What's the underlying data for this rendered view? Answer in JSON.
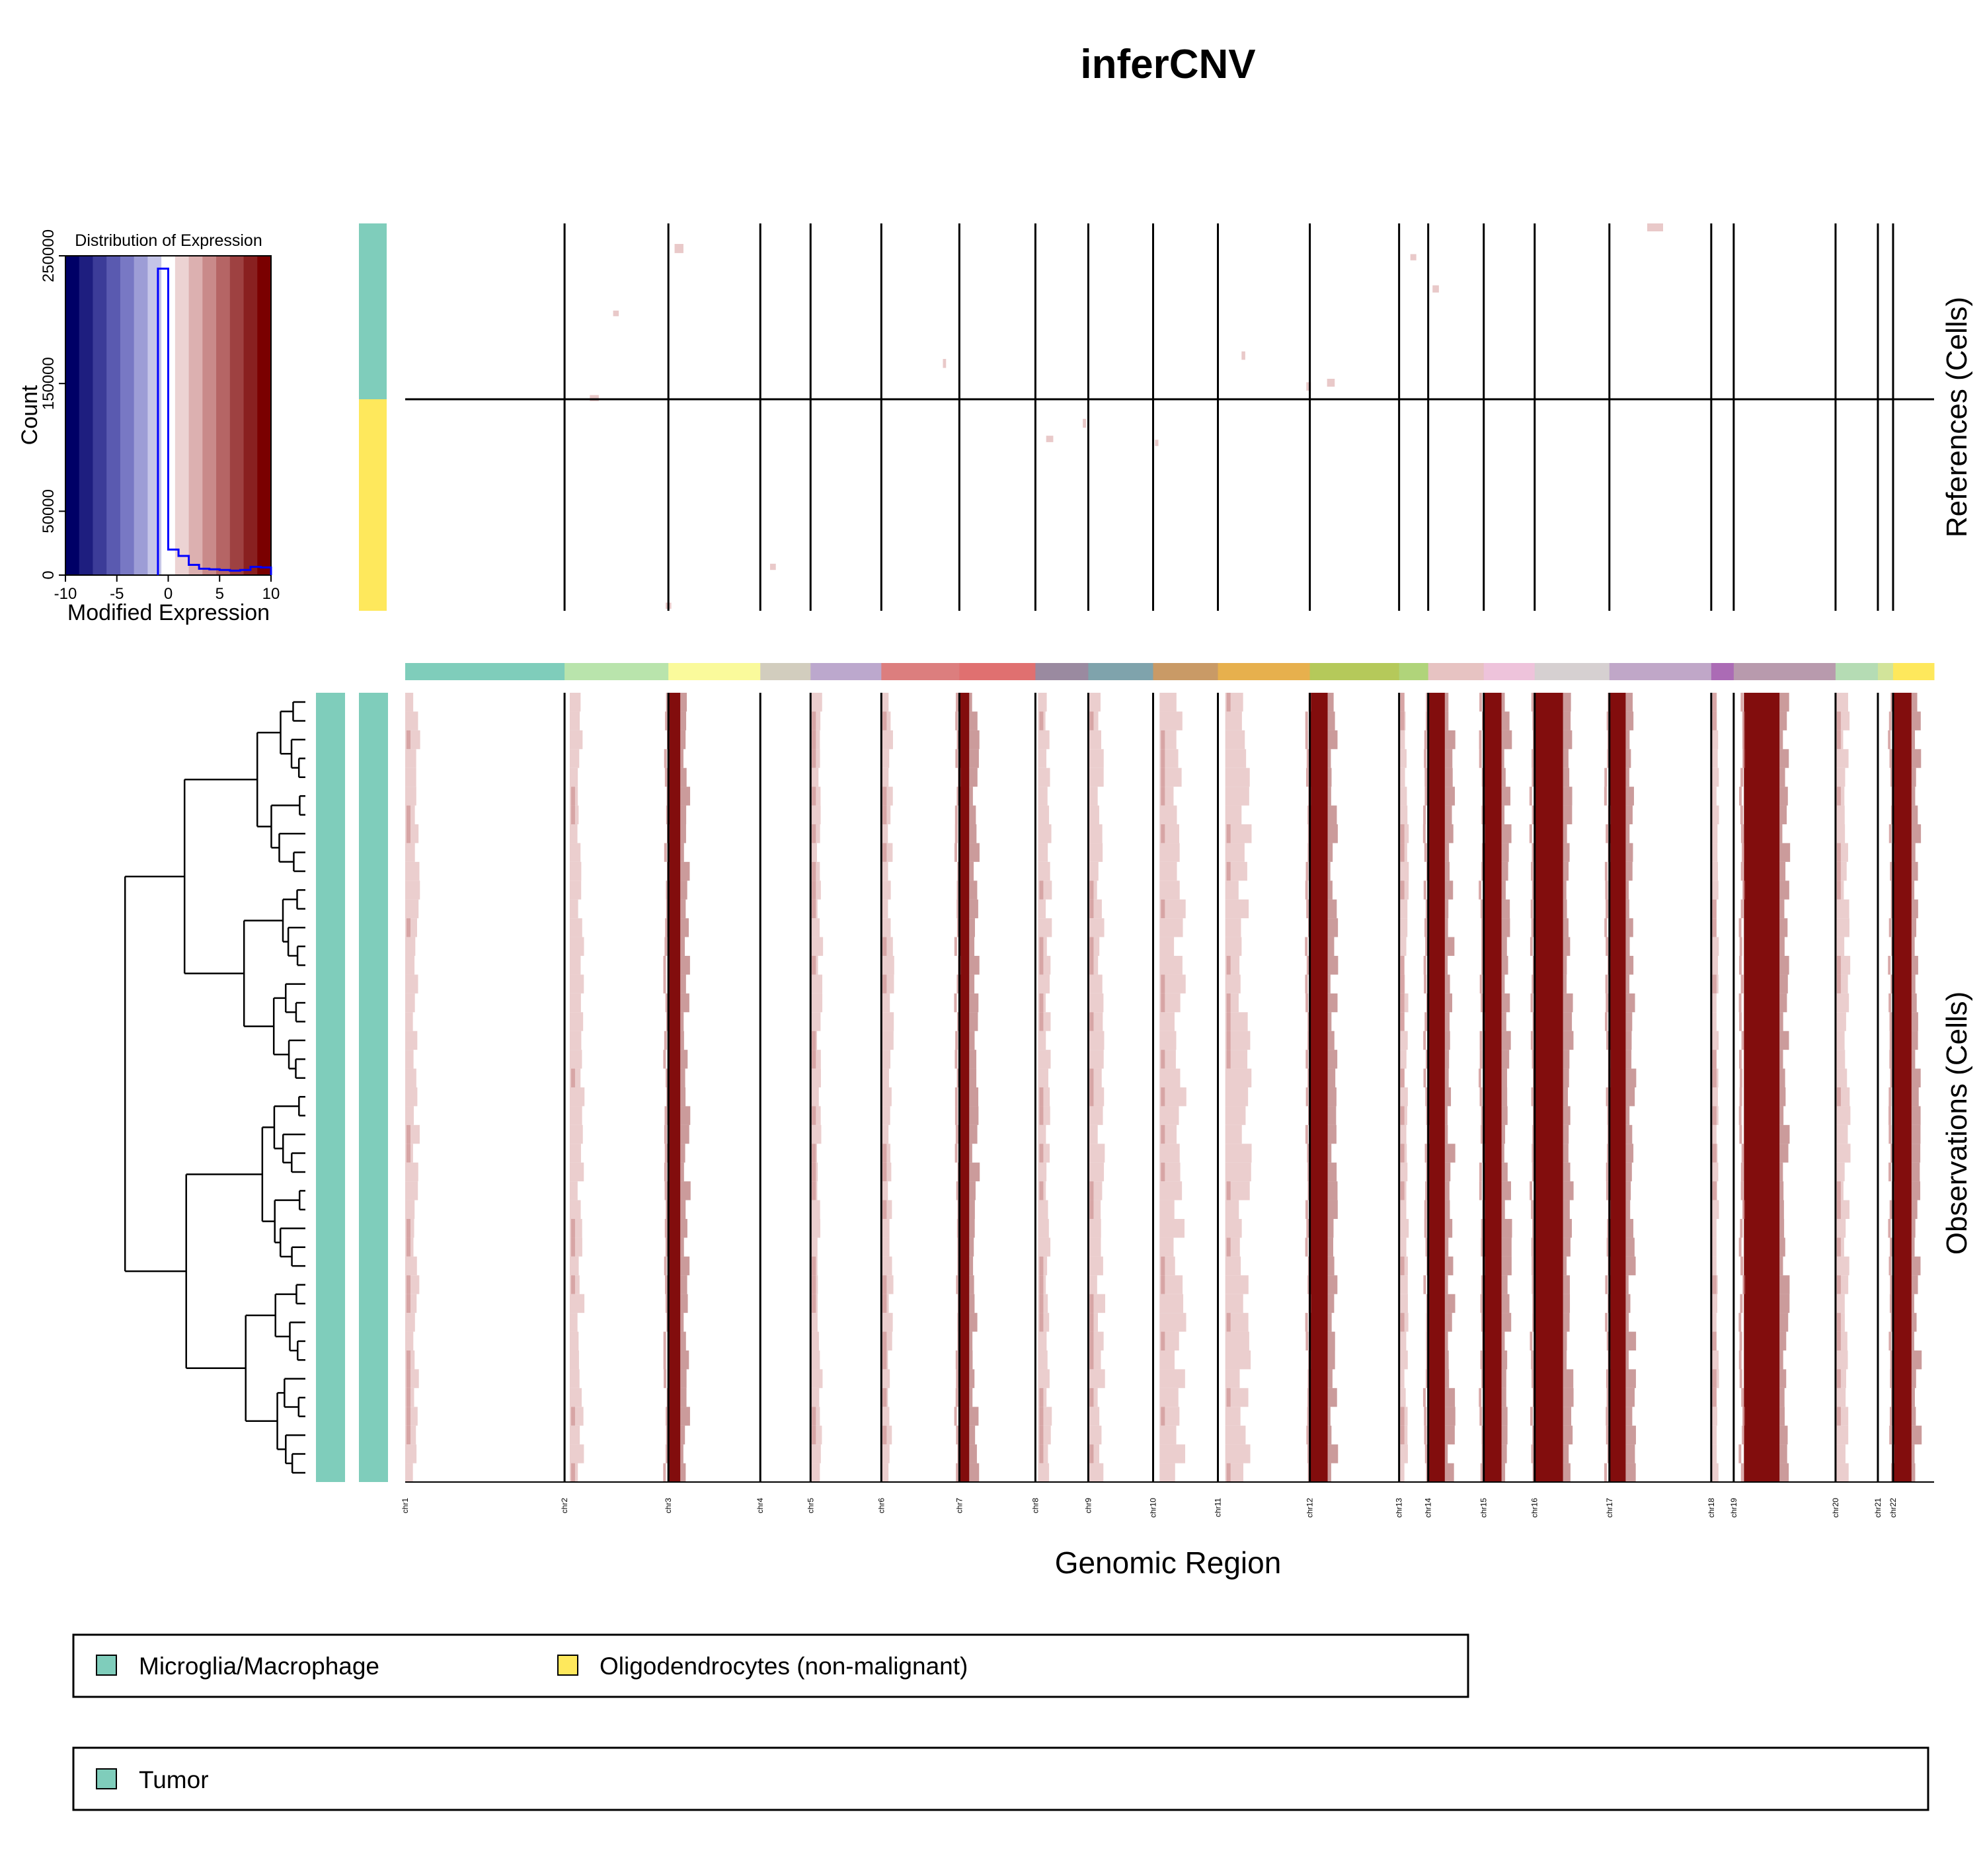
{
  "title": "inferCNV",
  "colors": {
    "microglia": "#7fcdbb",
    "oligodendrocytes": "#fee85c",
    "amplification": "#7b0000",
    "light_gain": "#e9c9c9",
    "line": "#000000",
    "hist_line": "#0000ff"
  },
  "histogram": {
    "title": "Distribution of Expression",
    "xlabel": "Modified Expression",
    "ylabel": "Count",
    "x_ticks": [
      "-10",
      "-5",
      "0",
      "5",
      "10"
    ],
    "y_ticks": [
      "0",
      "50000",
      "150000",
      "250000"
    ],
    "color_key": [
      "#000066",
      "#1e1e7f",
      "#3c3c98",
      "#5a5ab0",
      "#7878c4",
      "#9d9dd6",
      "#c5c5e8",
      "#ffffff",
      "#ecd3d3",
      "#dcb0b0",
      "#c98a8a",
      "#b56565",
      "#9e4141",
      "#892020",
      "#7a0000"
    ]
  },
  "references_label": "References (Cells)",
  "observations_label": "Observations (Cells)",
  "xlabel": "Genomic Region",
  "chromosomes": [
    "chr1",
    "chr2",
    "chr3",
    "chr4",
    "chr5",
    "chr6",
    "chr7",
    "chr8",
    "chr9",
    "chr10",
    "chr11",
    "chr12",
    "chr13",
    "chr14",
    "chr15",
    "chr16",
    "chr17",
    "chr18",
    "chr19",
    "chr20",
    "chr21",
    "chr22"
  ],
  "chromosome_colors": [
    "#7fcdbb",
    "#b9e4ac",
    "#fafa9b",
    "#d2cdbe",
    "#bca8cd",
    "#dc7e7e",
    "#e07070",
    "#9a8aa0",
    "#7fa3ac",
    "#c99a66",
    "#e7b04d",
    "#b5c95a",
    "#b0d47a",
    "#e7c3c2",
    "#eec3db",
    "#d6d0d1",
    "#c0a7c8",
    "#ab6bb5",
    "#b89aad",
    "#b5dcb4",
    "#d2e49a",
    "#fee85c"
  ],
  "legend_groups": {
    "references": [
      "Microglia/Macrophage",
      "Oligodendrocytes (non-malignant)"
    ],
    "observations": [
      "Tumor"
    ]
  },
  "chart_data": {
    "type": "heatmap",
    "title": "inferCNV",
    "xlabel": "Genomic Region",
    "chromosomes": [
      "chr1",
      "chr2",
      "chr3",
      "chr4",
      "chr5",
      "chr6",
      "chr7",
      "chr8",
      "chr9",
      "chr10",
      "chr11",
      "chr12",
      "chr13",
      "chr14",
      "chr15",
      "chr16",
      "chr17",
      "chr18",
      "chr19",
      "chr20",
      "chr21",
      "chr22"
    ],
    "references": {
      "ylabel": "References (Cells)",
      "groups": [
        "Microglia/Macrophage",
        "Oligodendrocytes (non-malignant)"
      ]
    },
    "observations": {
      "ylabel": "Observations (Cells)",
      "groups": [
        "Tumor"
      ],
      "n_cells_approx": 42,
      "strong_gain_chromosomes": [
        "chr3",
        "chr7",
        "chr12",
        "chr14",
        "chr15",
        "chr16",
        "chr17",
        "chr19",
        "chr22"
      ],
      "weak_gain_chromosomes": [
        "chr1",
        "chr2",
        "chr5",
        "chr6",
        "chr8",
        "chr9",
        "chr10",
        "chr11",
        "chr13",
        "chr18",
        "chr20"
      ]
    },
    "histogram": {
      "type": "histogram",
      "title": "Distribution of Expression",
      "xlabel": "Modified Expression",
      "ylabel": "Count",
      "xlim": [
        -10,
        10
      ],
      "ylim": [
        0,
        250000
      ],
      "bin_edges": [
        -1,
        0,
        1,
        2,
        3,
        4,
        5,
        6,
        7,
        8,
        9,
        10
      ],
      "counts": [
        240000,
        20000,
        15000,
        8000,
        5000,
        4500,
        4000,
        3500,
        4000,
        6500,
        6000
      ]
    }
  }
}
